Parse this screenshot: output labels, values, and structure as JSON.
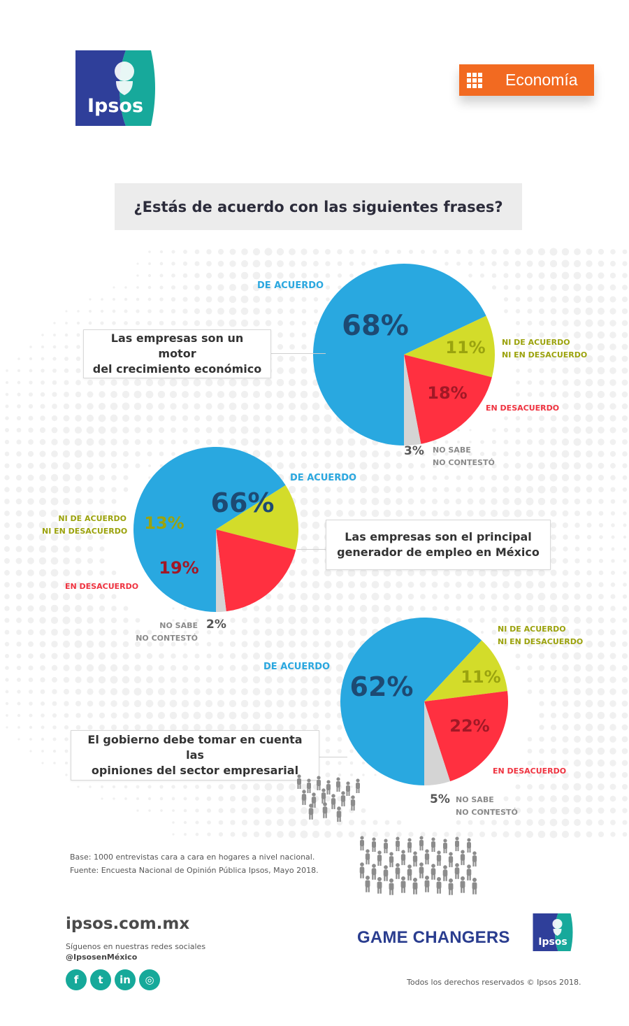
{
  "brand": {
    "logo_text": "Ipsos",
    "category_label": "Economía",
    "colors": {
      "blue_dark": "#2f3f9a",
      "teal": "#17a99b",
      "orange": "#f26a21"
    }
  },
  "title": "¿Estás de acuerdo con las siguientes frases?",
  "colors": {
    "de_acuerdo": "#29a8e0",
    "ni_de_acuerdo": "#d3dc2a",
    "en_desacuerdo": "#ff3040",
    "no_sabe": "#d4d4d4"
  },
  "chart_data": [
    {
      "type": "pie",
      "title": "Las empresas son un motor del crecimiento económico",
      "slices": [
        {
          "label": "DE ACUERDO",
          "value": 68
        },
        {
          "label": "NI DE ACUERDO NI EN DESACUERDO",
          "value": 11
        },
        {
          "label": "EN DESACUERDO",
          "value": 18
        },
        {
          "label": "NO SABE NO CONTESTÓ",
          "value": 3
        }
      ],
      "display": [
        "68%",
        "11%",
        "18%",
        "3%"
      ]
    },
    {
      "type": "pie",
      "title": "Las empresas son el principal generador de empleo en México",
      "slices": [
        {
          "label": "DE ACUERDO",
          "value": 66
        },
        {
          "label": "NI DE ACUERDO NI EN DESACUERDO",
          "value": 13
        },
        {
          "label": "EN DESACUERDO",
          "value": 19
        },
        {
          "label": "NO SABE NO CONTESTÓ",
          "value": 2
        }
      ],
      "display": [
        "66%",
        "13%",
        "19%",
        "2%"
      ]
    },
    {
      "type": "pie",
      "title": "El gobierno debe tomar en cuenta las opiniones del sector empresarial",
      "slices": [
        {
          "label": "DE ACUERDO",
          "value": 62
        },
        {
          "label": "NI DE ACUERDO NI EN DESACUERDO",
          "value": 11
        },
        {
          "label": "EN DESACUERDO",
          "value": 22
        },
        {
          "label": "NO SABE NO CONTESTÓ",
          "value": 5
        }
      ],
      "display": [
        "62%",
        "11%",
        "22%",
        "5%"
      ]
    }
  ],
  "labels": {
    "de_acuerdo": "DE ACUERDO",
    "ni_line1": "NI DE ACUERDO",
    "ni_line2": "NI EN DESACUERDO",
    "en_desacuerdo": "EN DESACUERDO",
    "ns_line1": "NO SABE",
    "ns_line2": "NO CONTESTÓ"
  },
  "statements": [
    {
      "line1": "Las empresas son un motor",
      "line2": "del crecimiento económico"
    },
    {
      "line1": "Las empresas son el principal",
      "line2": "generador de empleo en México"
    },
    {
      "line1": "El gobierno debe tomar en cuenta las",
      "line2": "opiniones del sector empresarial"
    }
  ],
  "footer": {
    "base": "Base: 1000 entrevistas cara a cara en hogares a nivel nacional.",
    "fuente": "Fuente: Encuesta Nacional de Opinión Pública Ipsos, Mayo 2018.",
    "site": "ipsos.com.mx",
    "follow": "Síguenos en nuestras redes sociales",
    "handle": "@IpsosenMéxico",
    "socials": [
      {
        "icon": "facebook-icon",
        "glyph": "f"
      },
      {
        "icon": "twitter-icon",
        "glyph": "t"
      },
      {
        "icon": "linkedin-icon",
        "glyph": "in"
      },
      {
        "icon": "instagram-icon",
        "glyph": "◎"
      }
    ],
    "game_changers": "GAME CHANGERS",
    "copyright": "Todos los derechos reservados © Ipsos 2018."
  }
}
